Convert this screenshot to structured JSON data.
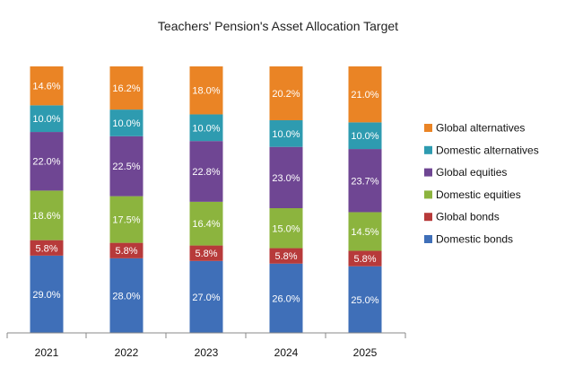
{
  "chart_data": {
    "type": "bar",
    "stacked": true,
    "title": "Teachers' Pension's Asset Allocation Target",
    "xlabel": "",
    "ylabel": "",
    "ylim": [
      0,
      100
    ],
    "grid": false,
    "legend_position": "right",
    "categories": [
      "2021",
      "2022",
      "2023",
      "2024",
      "2025"
    ],
    "series": [
      {
        "name": "Domestic bonds",
        "color": "#3f6fb8",
        "values": [
          29.0,
          28.0,
          27.0,
          26.0,
          25.0
        ],
        "labels": [
          "29.0%",
          "28.0%",
          "27.0%",
          "26.0%",
          "25.0%"
        ]
      },
      {
        "name": "Global bonds",
        "color": "#b73a3a",
        "values": [
          5.8,
          5.8,
          5.8,
          5.8,
          5.8
        ],
        "labels": [
          "5.8%",
          "5.8%",
          "5.8%",
          "5.8%",
          "5.8%"
        ]
      },
      {
        "name": "Domestic equities",
        "color": "#8cb43e",
        "values": [
          18.6,
          17.5,
          16.4,
          15.0,
          14.5
        ],
        "labels": [
          "18.6%",
          "17.5%",
          "16.4%",
          "15.0%",
          "14.5%"
        ]
      },
      {
        "name": "Global equities",
        "color": "#6f4693",
        "values": [
          22.0,
          22.5,
          22.8,
          23.0,
          23.7
        ],
        "labels": [
          "22.0%",
          "22.5%",
          "22.8%",
          "23.0%",
          "23.7%"
        ]
      },
      {
        "name": "Domestic alternatives",
        "color": "#2e9bb0",
        "values": [
          10.0,
          10.0,
          10.0,
          10.0,
          10.0
        ],
        "labels": [
          "10.0%",
          "10.0%",
          "10.0%",
          "10.0%",
          "10.0%"
        ]
      },
      {
        "name": "Global alternatives",
        "color": "#ea8425",
        "values": [
          14.6,
          16.2,
          18.0,
          20.2,
          21.0
        ],
        "labels": [
          "14.6%",
          "16.2%",
          "18.0%",
          "20.2%",
          "21.0%"
        ]
      }
    ],
    "legend_order": [
      "Global alternatives",
      "Domestic alternatives",
      "Global equities",
      "Domestic equities",
      "Global bonds",
      "Domestic bonds"
    ]
  }
}
